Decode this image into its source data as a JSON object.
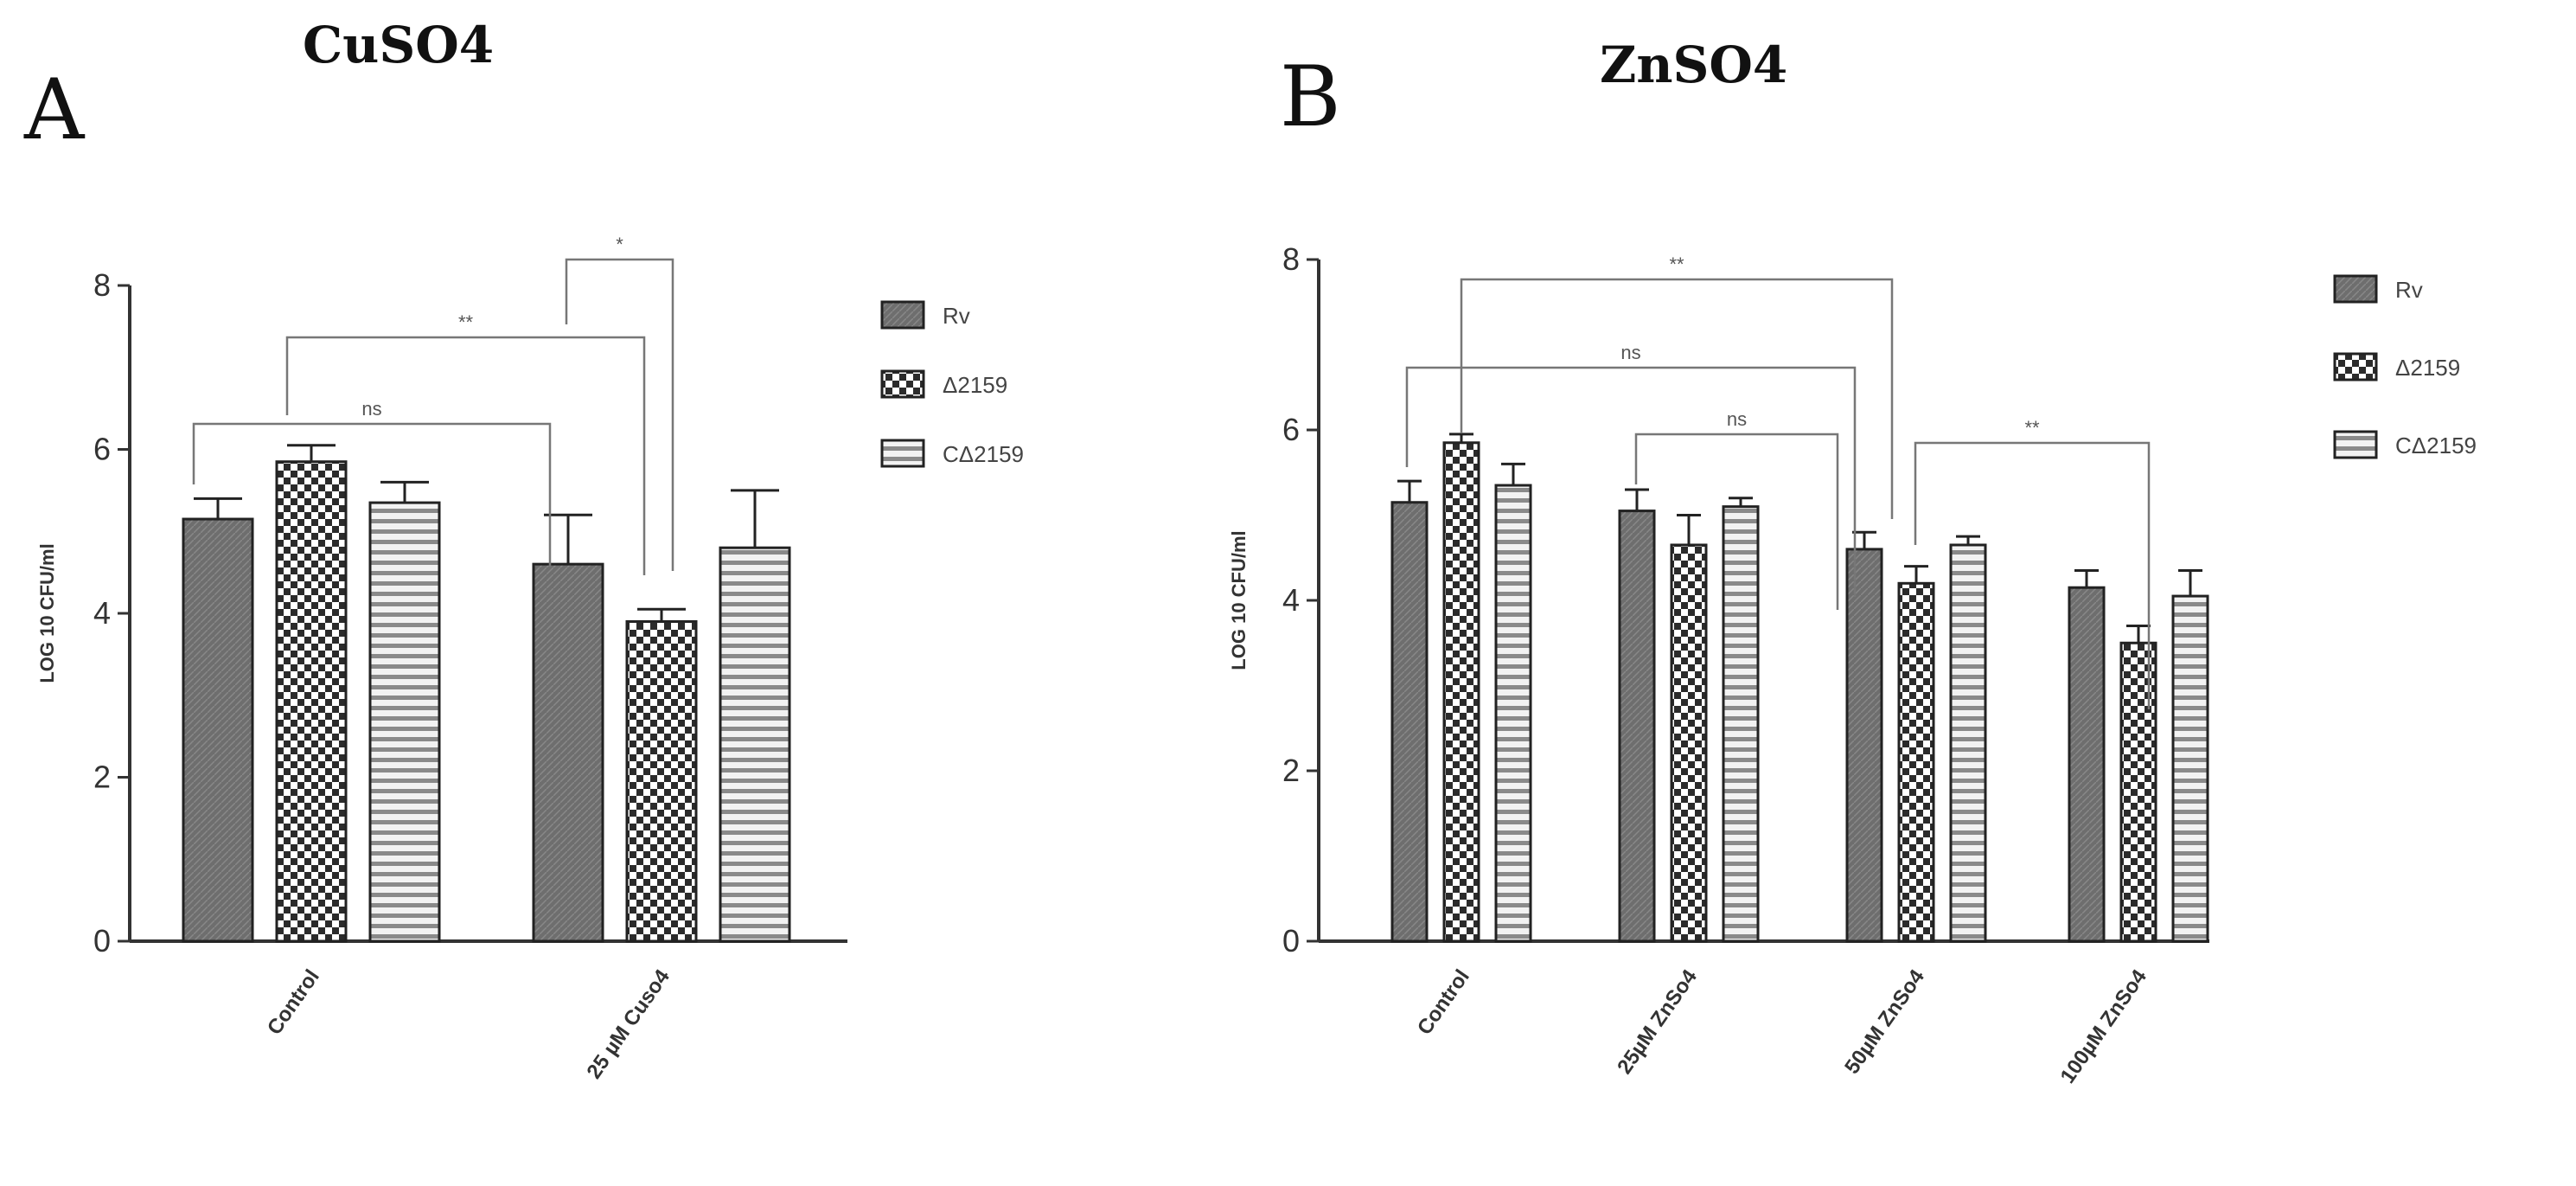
{
  "chart_data": [
    {
      "type": "bar",
      "panel": "A",
      "title": "CuSO4",
      "ylabel": "LOG 10 CFU/ml",
      "xlabel": "",
      "ylim": [
        0,
        8
      ],
      "yticks": [
        0,
        2,
        4,
        6,
        8
      ],
      "categories": [
        "Control",
        "25 µM Cuso4"
      ],
      "series": [
        {
          "name": "Rv",
          "values": [
            5.15,
            4.6
          ],
          "errors": [
            0.25,
            0.6
          ]
        },
        {
          "name": "Δ2159",
          "values": [
            5.85,
            3.9
          ],
          "errors": [
            0.2,
            0.15
          ]
        },
        {
          "name": "CΔ2159",
          "values": [
            5.35,
            4.8
          ],
          "errors": [
            0.25,
            0.7
          ]
        }
      ],
      "significance": [
        {
          "label": "ns"
        },
        {
          "label": "**"
        },
        {
          "label": "*"
        }
      ],
      "legend_position": "right"
    },
    {
      "type": "bar",
      "panel": "B",
      "title": "ZnSO4",
      "ylabel": "LOG 10 CFU/ml",
      "xlabel": "",
      "ylim": [
        0,
        8
      ],
      "yticks": [
        0,
        2,
        4,
        6,
        8
      ],
      "categories": [
        "Control",
        "25µM ZnSo4",
        "50µM ZnSo4",
        "100µM ZnSo4"
      ],
      "series": [
        {
          "name": "Rv",
          "values": [
            5.15,
            5.05,
            4.6,
            4.15
          ],
          "errors": [
            0.25,
            0.25,
            0.2,
            0.2
          ]
        },
        {
          "name": "Δ2159",
          "values": [
            5.85,
            4.65,
            4.2,
            3.5
          ],
          "errors": [
            0.1,
            0.35,
            0.2,
            0.2
          ]
        },
        {
          "name": "CΔ2159",
          "values": [
            5.35,
            5.1,
            4.65,
            4.05
          ],
          "errors": [
            0.25,
            0.1,
            0.1,
            0.3
          ]
        }
      ],
      "significance": [
        {
          "label": "**"
        },
        {
          "label": "ns"
        },
        {
          "label": "ns"
        },
        {
          "label": "**"
        }
      ],
      "legend_position": "right"
    }
  ]
}
